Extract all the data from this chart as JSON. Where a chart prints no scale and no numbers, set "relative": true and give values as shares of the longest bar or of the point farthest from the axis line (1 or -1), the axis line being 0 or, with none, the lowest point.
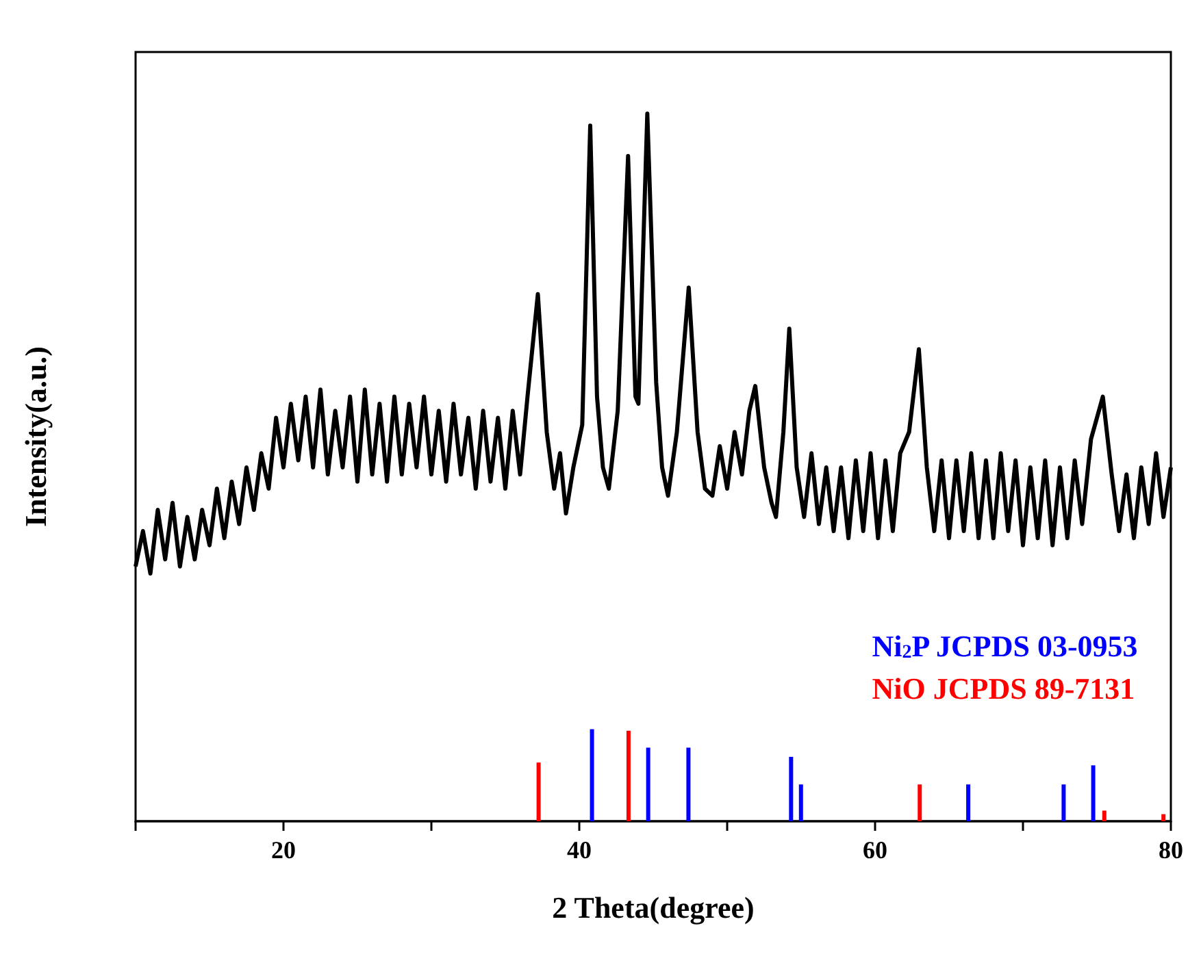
{
  "chart_data": {
    "type": "line",
    "relative": true,
    "xlabel": "2 Theta(degree)",
    "ylabel": "Intensity(a.u.)",
    "xlim": [
      10,
      80
    ],
    "xticks": [
      {
        "value": 10,
        "label": null
      },
      20,
      {
        "value": 30,
        "label": null
      },
      40,
      {
        "value": 50,
        "label": null
      },
      60,
      {
        "value": 70,
        "label": null
      },
      80
    ],
    "grid": false,
    "legend": "bottom right",
    "marker": "none",
    "series": [
      {
        "color": "#000000",
        "x": [
          10,
          10.5,
          11,
          11.5,
          12,
          12.5,
          13,
          13.5,
          14,
          14.5,
          15,
          15.5,
          16,
          16.5,
          17,
          17.5,
          18,
          18.5,
          19,
          19.5,
          20,
          20.5,
          21,
          21.5,
          22,
          22.5,
          23,
          23.5,
          24,
          24.5,
          25,
          25.5,
          26,
          26.5,
          27,
          27.5,
          28,
          28.5,
          29,
          29.5,
          30,
          30.5,
          31,
          31.5,
          32,
          32.5,
          33,
          33.5,
          34,
          34.5,
          35,
          35.5,
          36,
          36.5,
          37.2,
          37.8,
          38.3,
          38.7,
          39.1,
          39.6,
          40.2,
          40.74,
          41.2,
          41.6,
          42.0,
          42.6,
          43.3,
          43.8,
          44.0,
          44.6,
          45.2,
          45.6,
          46.0,
          46.6,
          47.4,
          48.0,
          48.5,
          49.0,
          49.5,
          50.0,
          50.5,
          51.0,
          51.5,
          51.9,
          52.5,
          53.0,
          53.3,
          53.8,
          54.2,
          54.7,
          55.2,
          55.7,
          56.2,
          56.7,
          57.2,
          57.7,
          58.2,
          58.7,
          59.2,
          59.7,
          60.2,
          60.7,
          61.2,
          61.7,
          62.3,
          62.96,
          63.5,
          64.0,
          64.5,
          65.0,
          65.5,
          66.0,
          66.5,
          67.0,
          67.5,
          68.0,
          68.5,
          69.0,
          69.5,
          70.0,
          70.5,
          71.0,
          71.5,
          72.0,
          72.5,
          73.0,
          73.5,
          74.0,
          74.6,
          75.4,
          76.0,
          76.5,
          77.0,
          77.5,
          78.0,
          78.5,
          79.0,
          79.5,
          80
        ],
        "values": [
          0.36,
          0.41,
          0.35,
          0.44,
          0.37,
          0.45,
          0.36,
          0.43,
          0.37,
          0.44,
          0.39,
          0.47,
          0.4,
          0.48,
          0.42,
          0.5,
          0.44,
          0.52,
          0.47,
          0.57,
          0.5,
          0.59,
          0.51,
          0.6,
          0.5,
          0.61,
          0.49,
          0.58,
          0.5,
          0.6,
          0.48,
          0.61,
          0.49,
          0.59,
          0.48,
          0.6,
          0.49,
          0.59,
          0.5,
          0.6,
          0.49,
          0.58,
          0.48,
          0.59,
          0.49,
          0.57,
          0.47,
          0.58,
          0.48,
          0.57,
          0.47,
          0.58,
          0.49,
          0.6,
          0.745,
          0.55,
          0.47,
          0.52,
          0.435,
          0.5,
          0.56,
          0.983,
          0.6,
          0.5,
          0.47,
          0.58,
          0.94,
          0.6,
          0.59,
          1.0,
          0.62,
          0.5,
          0.46,
          0.55,
          0.754,
          0.55,
          0.47,
          0.46,
          0.53,
          0.47,
          0.55,
          0.49,
          0.58,
          0.615,
          0.5,
          0.45,
          0.43,
          0.55,
          0.696,
          0.5,
          0.43,
          0.52,
          0.42,
          0.5,
          0.41,
          0.5,
          0.4,
          0.51,
          0.41,
          0.52,
          0.4,
          0.51,
          0.41,
          0.52,
          0.55,
          0.667,
          0.5,
          0.41,
          0.51,
          0.4,
          0.51,
          0.41,
          0.52,
          0.4,
          0.51,
          0.4,
          0.52,
          0.41,
          0.51,
          0.39,
          0.5,
          0.4,
          0.51,
          0.39,
          0.5,
          0.4,
          0.51,
          0.42,
          0.54,
          0.6,
          0.49,
          0.41,
          0.49,
          0.4,
          0.5,
          0.42,
          0.52,
          0.43,
          0.5
        ]
      },
      {
        "type": "bar",
        "name": "Ni$_{2}$P JCPDS 03-0953",
        "color": "#0000ff",
        "x": [
          40.86,
          44.66,
          47.38,
          54.32,
          54.99,
          66.3,
          72.75,
          74.75
        ],
        "values": [
          0.13,
          0.104,
          0.104,
          0.091,
          0.052,
          0.052,
          0.052,
          0.079
        ]
      },
      {
        "type": "bar",
        "name": "NiO JCPDS 89-7131",
        "color": "#ff0000",
        "x": [
          37.25,
          43.33,
          63.02,
          75.5,
          79.5
        ],
        "values": [
          0.083,
          0.128,
          0.052,
          0.015,
          0.01
        ]
      }
    ]
  }
}
